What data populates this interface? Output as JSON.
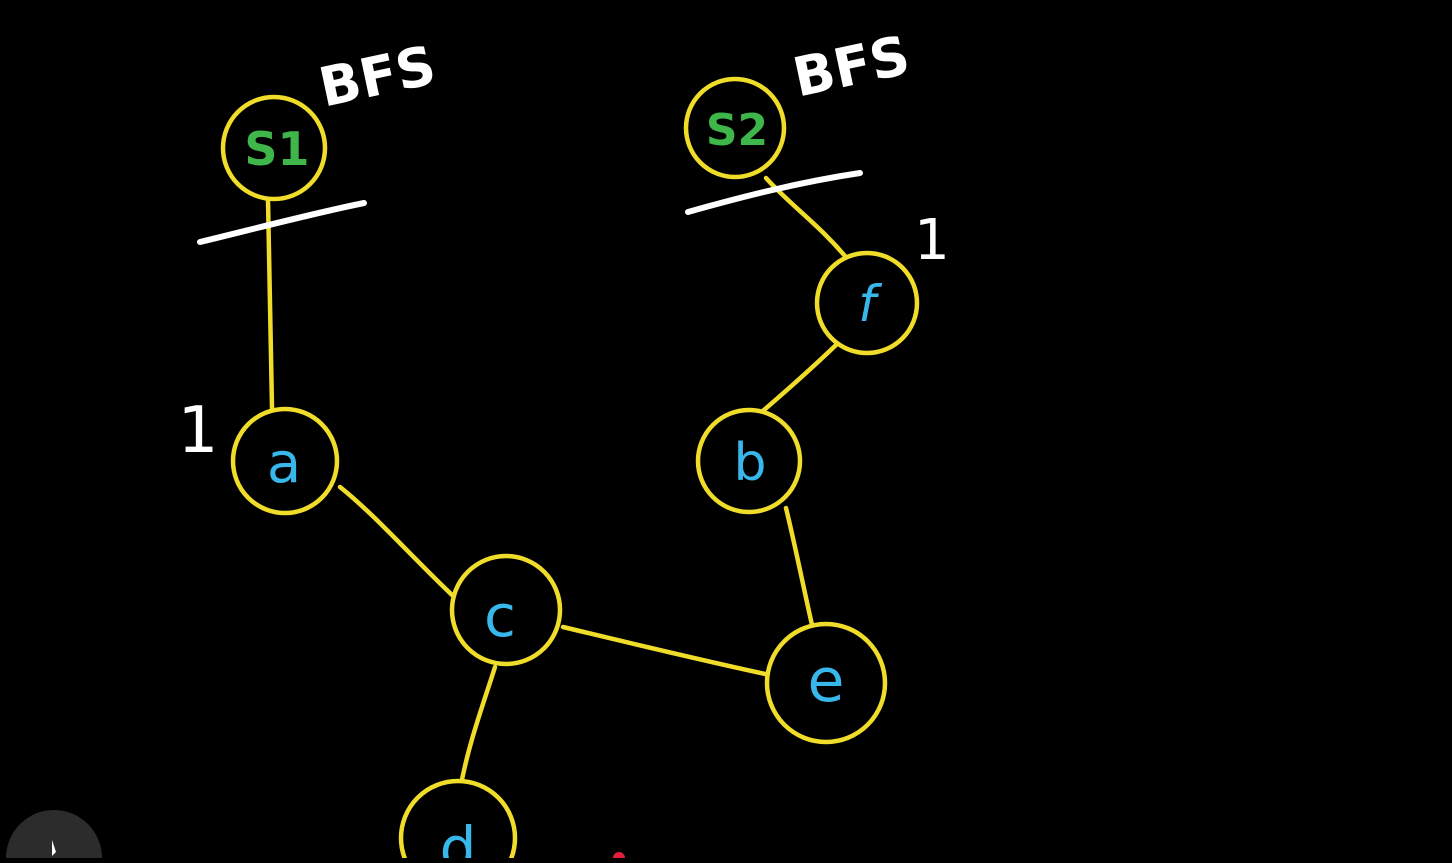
{
  "colors": {
    "background": "#000000",
    "edge": "#f0dd2a",
    "node_outline": "#f0dd2a",
    "source_label": "#3fb64a",
    "node_label": "#38b7ea",
    "annotation": "#ffffff",
    "marker_dot": "#e0203a",
    "corner_button": "#2c2c2c"
  },
  "sources": [
    {
      "id": "s1",
      "label": "S1",
      "annotation": "BFS",
      "level_mark": "1"
    },
    {
      "id": "s2",
      "label": "S2",
      "annotation": "BFS",
      "level_mark": "1"
    }
  ],
  "nodes": [
    {
      "id": "a",
      "label": "a"
    },
    {
      "id": "b",
      "label": "b"
    },
    {
      "id": "c",
      "label": "c"
    },
    {
      "id": "d",
      "label": "d"
    },
    {
      "id": "e",
      "label": "e"
    },
    {
      "id": "f",
      "label": "f"
    }
  ],
  "edges": [
    {
      "from": "s1",
      "to": "a"
    },
    {
      "from": "a",
      "to": "c"
    },
    {
      "from": "c",
      "to": "e"
    },
    {
      "from": "c",
      "to": "d"
    },
    {
      "from": "s2",
      "to": "f"
    },
    {
      "from": "f",
      "to": "b"
    },
    {
      "from": "b",
      "to": "e"
    }
  ],
  "icons": {
    "corner_button": "cursor-icon"
  }
}
